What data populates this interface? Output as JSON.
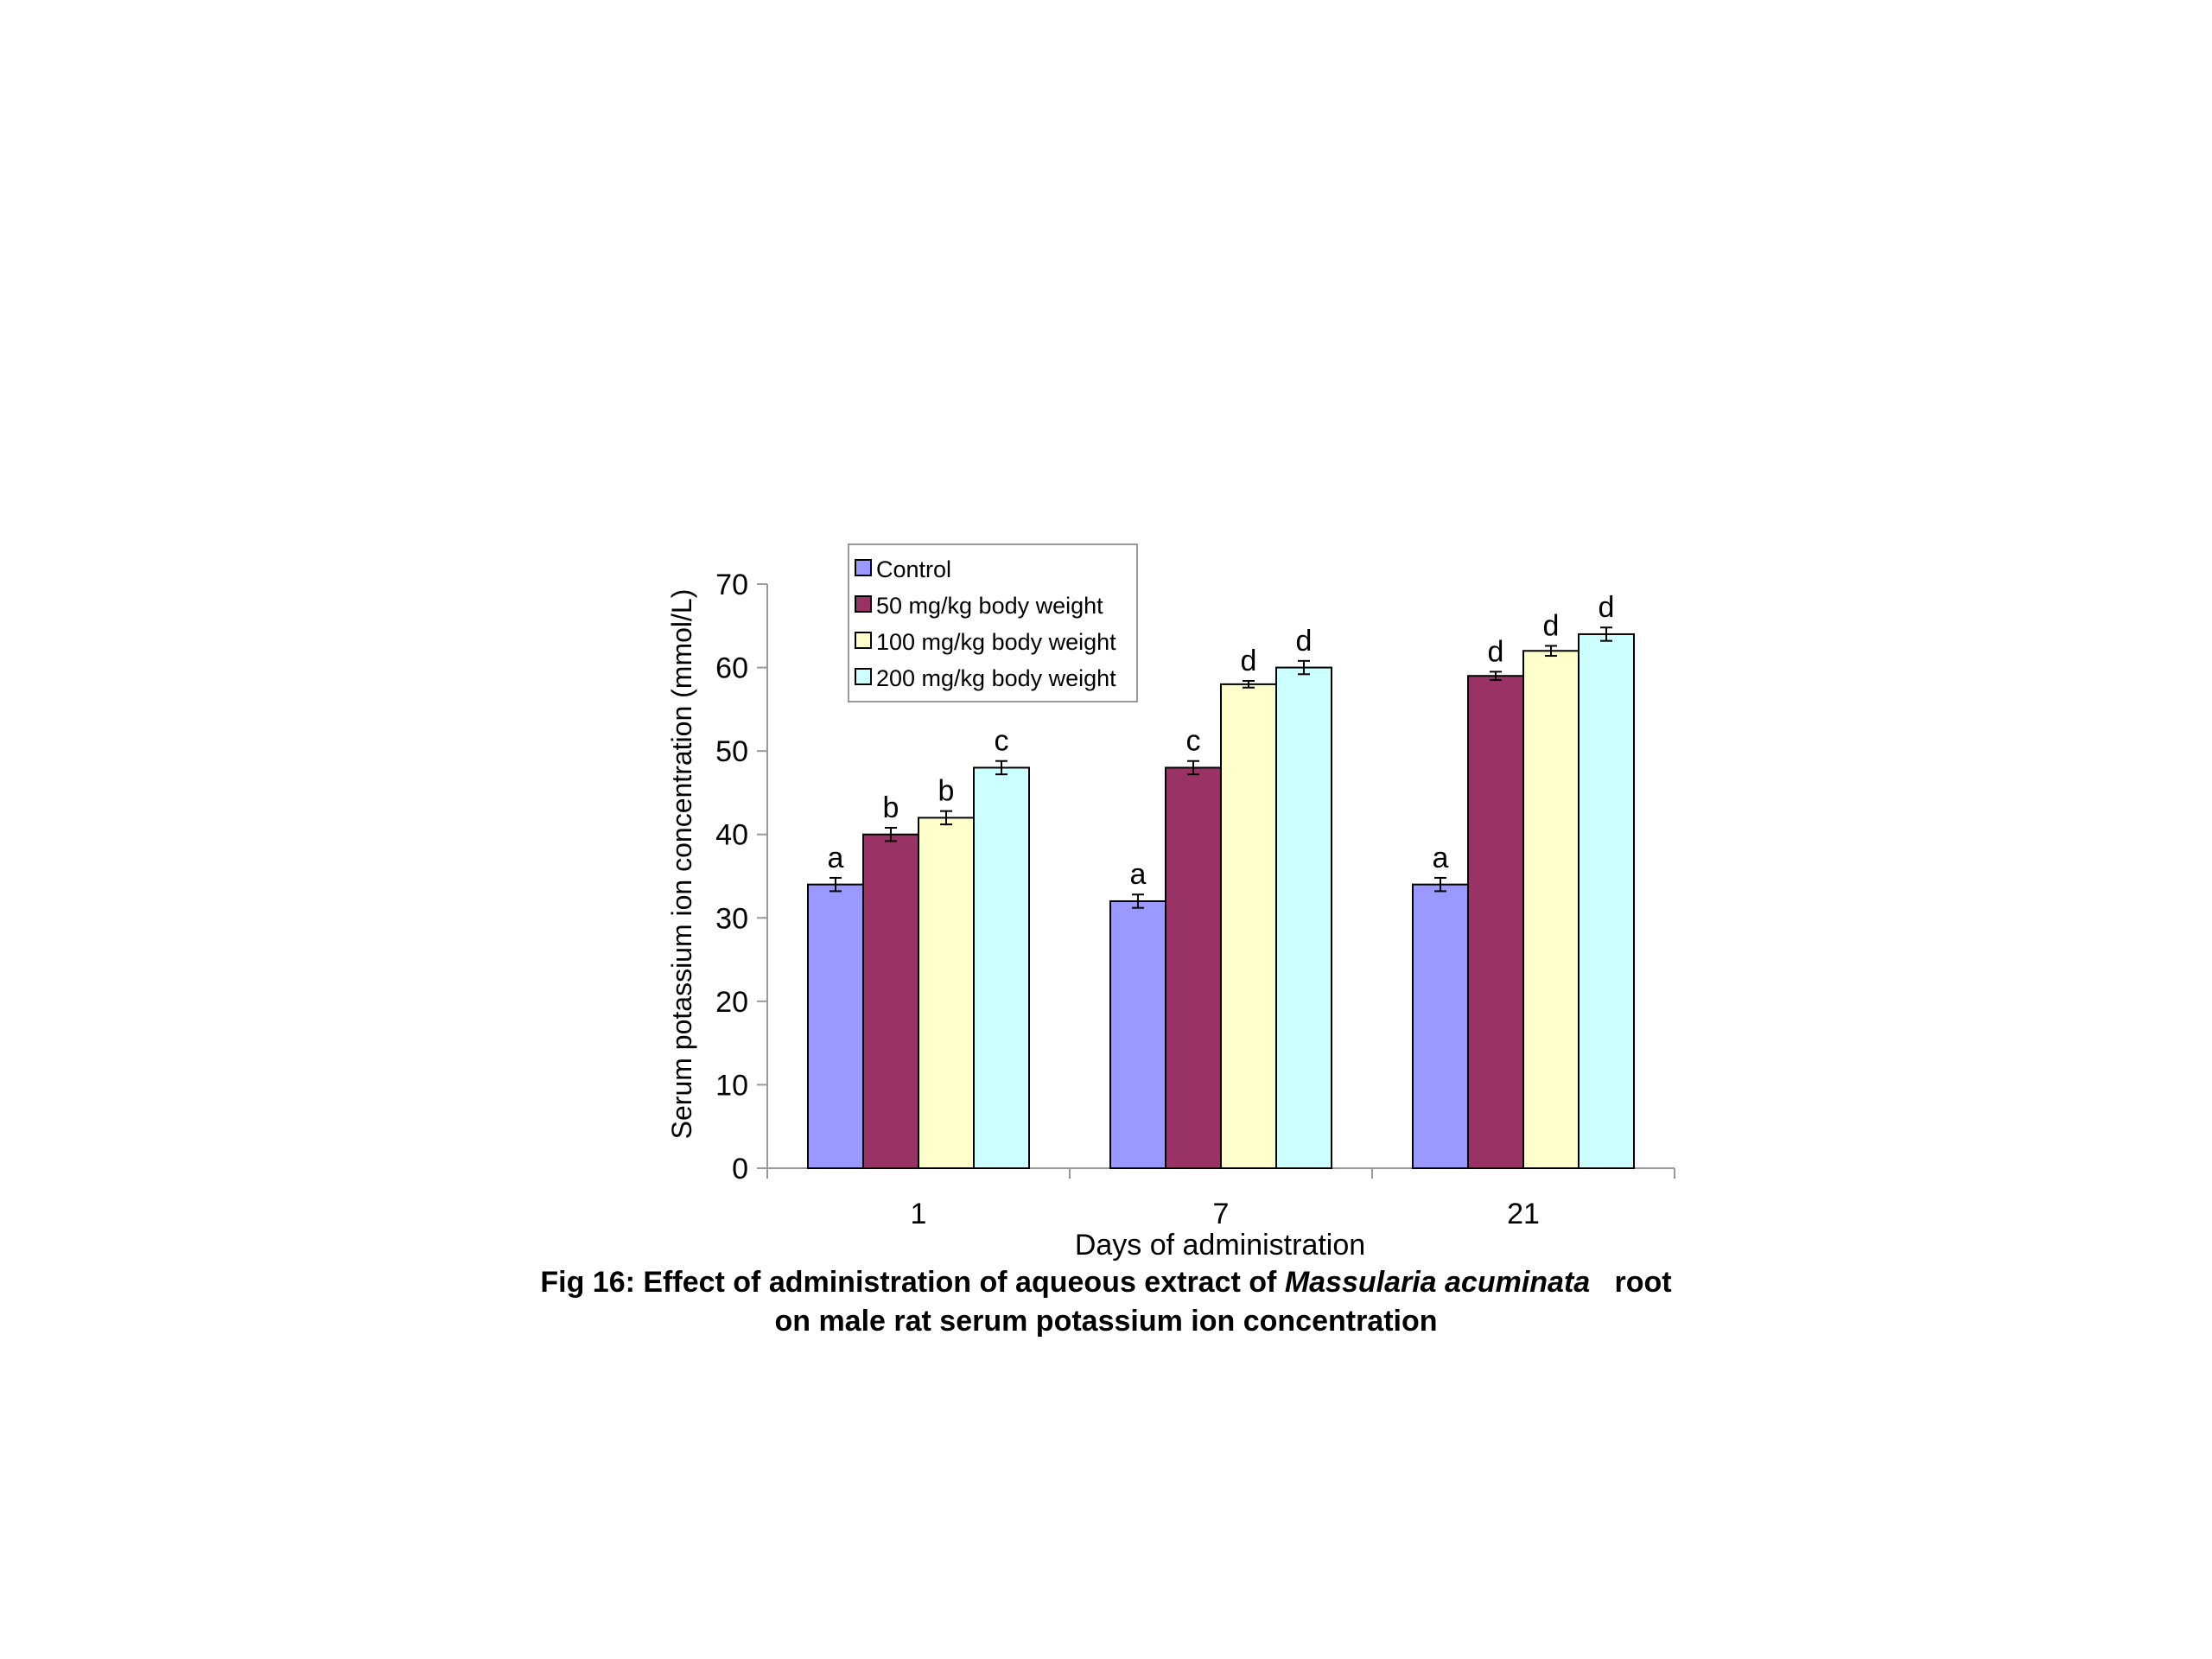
{
  "chart_data": {
    "type": "bar",
    "categories": [
      "1",
      "7",
      "21"
    ],
    "series": [
      {
        "name": "Control",
        "color": "#9999ff",
        "values": [
          34,
          32,
          34
        ],
        "errors": [
          0.8,
          0.8,
          0.8
        ],
        "labels": [
          "a",
          "a",
          "a"
        ]
      },
      {
        "name": "50 mg/kg body weight",
        "color": "#993366",
        "values": [
          40,
          48,
          59
        ],
        "errors": [
          0.8,
          0.8,
          0.5
        ],
        "labels": [
          "b",
          "c",
          "d"
        ]
      },
      {
        "name": "100 mg/kg body weight",
        "color": "#ffffcc",
        "values": [
          42,
          58,
          62
        ],
        "errors": [
          0.8,
          0.4,
          0.6
        ],
        "labels": [
          "b",
          "d",
          "d"
        ]
      },
      {
        "name": "200 mg/kg body weight",
        "color": "#ccffff",
        "values": [
          48,
          60,
          64
        ],
        "errors": [
          0.8,
          0.8,
          0.8
        ],
        "labels": [
          "c",
          "d",
          "d"
        ]
      }
    ],
    "xlabel": "Days of administration",
    "ylabel": "Serum potassium ion concentration (mmol/L)",
    "ylim": [
      0,
      70
    ],
    "yticks": [
      0,
      10,
      20,
      30,
      40,
      50,
      60,
      70
    ],
    "grid": false,
    "legend": "top-left"
  },
  "caption": {
    "line1_prefix": "Fig 16: Effect of administration of aqueous extract of ",
    "line1_species": "Massularia acuminata",
    "line1_suffix": "   root",
    "line2": "on male rat serum potassium ion concentration"
  }
}
